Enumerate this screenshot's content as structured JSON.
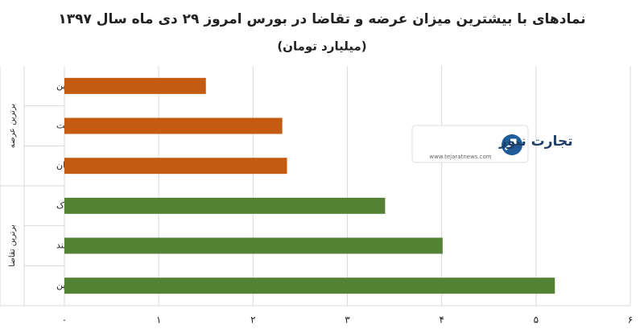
{
  "chart_data": {
    "type": "bar",
    "orientation": "horizontal",
    "title": "نمادهای با بیشترین میزان عرضه و تقاضا در بورس امروز ۲۹ دی ماه سال ۱۳۹۷",
    "subtitle": "(میلیارد تومان)",
    "groups": [
      {
        "name": "برترین عرضه",
        "color": "#c55a11",
        "categories": [
          "قشرین",
          "ویپست",
          "کیان"
        ],
        "values": [
          1.5,
          2.31,
          2.36
        ]
      },
      {
        "name": "برترین تقاضا",
        "color": "#548235",
        "categories": [
          "فاراک",
          "کمند",
          "شکرین"
        ],
        "values": [
          3.4,
          4.01,
          5.2
        ]
      }
    ],
    "xlim": [
      0,
      6
    ],
    "xticks": [
      {
        "value": 0,
        "label": "۰"
      },
      {
        "value": 1,
        "label": "۱"
      },
      {
        "value": 2,
        "label": "۲"
      },
      {
        "value": 3,
        "label": "۳"
      },
      {
        "value": 4,
        "label": "۴"
      },
      {
        "value": 5,
        "label": "۵"
      },
      {
        "value": 6,
        "label": "۶"
      }
    ],
    "grid": true
  },
  "logo": {
    "name": "تجارت نیوز",
    "url": "www.tejaratnews.com"
  }
}
